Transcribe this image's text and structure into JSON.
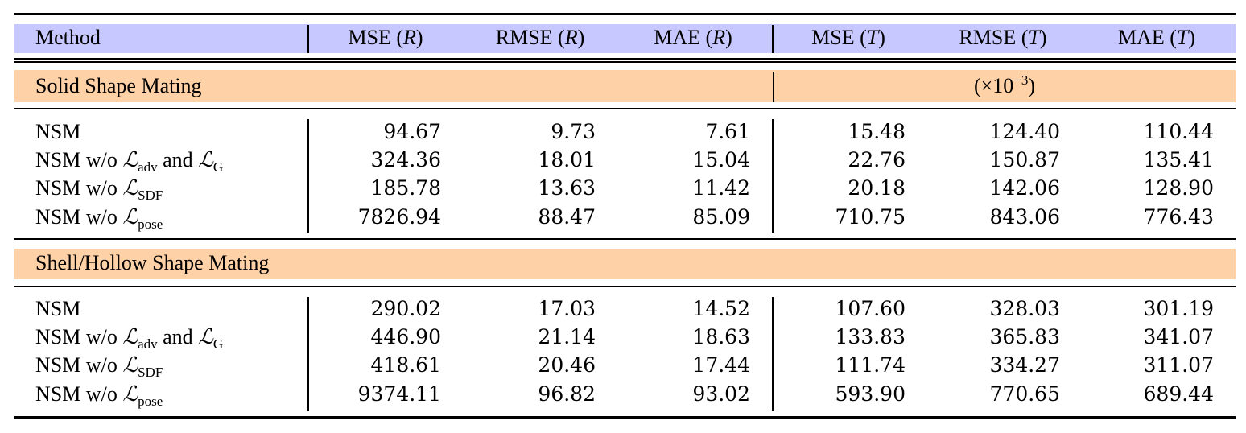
{
  "colors": {
    "header_band": "#c7c8ff",
    "section_band": "#ffd1a6",
    "rule": "#000000"
  },
  "header": {
    "method": "Method",
    "cols": [
      {
        "metric": "MSE (",
        "var": "R",
        "close": ")"
      },
      {
        "metric": "RMSE (",
        "var": "R",
        "close": ")"
      },
      {
        "metric": "MAE (",
        "var": "R",
        "close": ")"
      },
      {
        "metric": "MSE (",
        "var": "T",
        "close": ")"
      },
      {
        "metric": "RMSE (",
        "var": "T",
        "close": ")"
      },
      {
        "metric": "MAE (",
        "var": "T",
        "close": ")"
      }
    ]
  },
  "labels": {
    "nsm": "NSM",
    "wo": "NSM w/o ",
    "and": " and ",
    "script_L": "ℒ",
    "sub_adv": "adv",
    "sub_G": "G",
    "sub_sdf": "SDF",
    "sub_pose": "pose"
  },
  "sections": [
    {
      "title": "Solid Shape Mating",
      "scale_note": {
        "prefix": "(×10",
        "exp": "−3",
        "suffix": ")"
      },
      "rows": [
        [
          "94.67",
          "9.73",
          "7.61",
          "15.48",
          "124.40",
          "110.44"
        ],
        [
          "324.36",
          "18.01",
          "15.04",
          "22.76",
          "150.87",
          "135.41"
        ],
        [
          "185.78",
          "13.63",
          "11.42",
          "20.18",
          "142.06",
          "128.90"
        ],
        [
          "7826.94",
          "88.47",
          "85.09",
          "710.75",
          "843.06",
          "776.43"
        ]
      ]
    },
    {
      "title": "Shell/Hollow Shape Mating",
      "rows": [
        [
          "290.02",
          "17.03",
          "14.52",
          "107.60",
          "328.03",
          "301.19"
        ],
        [
          "446.90",
          "21.14",
          "18.63",
          "133.83",
          "365.83",
          "341.07"
        ],
        [
          "418.61",
          "20.46",
          "17.44",
          "111.74",
          "334.27",
          "311.07"
        ],
        [
          "9374.11",
          "96.82",
          "93.02",
          "593.90",
          "770.65",
          "689.44"
        ]
      ]
    }
  ]
}
